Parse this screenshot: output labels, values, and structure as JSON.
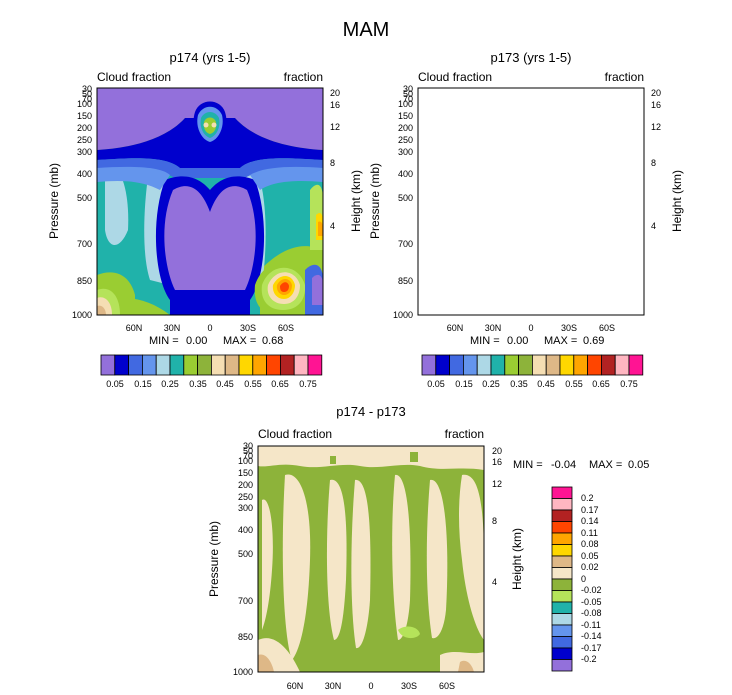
{
  "page_title": "MAM",
  "chart_data": [
    {
      "type": "heatmap",
      "title": "p174 (yrs 1-5)",
      "left_label": "Cloud fraction",
      "right_label": "fraction",
      "ylabel": "Pressure (mb)",
      "ylabel_right": "Height (km)",
      "y_ticks": [
        "30",
        "50",
        "70",
        "100",
        "150",
        "200",
        "250",
        "300",
        "400",
        "500",
        "700",
        "850",
        "1000"
      ],
      "y_right_ticks": [
        "20",
        "16",
        "12",
        "8",
        "4"
      ],
      "x_ticks": [
        "60N",
        "30N",
        "0",
        "30S",
        "60S"
      ],
      "min_label": "MIN =",
      "min_value": "0.00",
      "max_label": "MAX =",
      "max_value": "0.68",
      "colorbar_labels": [
        "0.05",
        "0.15",
        "0.25",
        "0.35",
        "0.45",
        "0.55",
        "0.65",
        "0.75"
      ]
    },
    {
      "type": "heatmap",
      "title": "p173 (yrs 1-5)",
      "left_label": "Cloud fraction",
      "right_label": "fraction",
      "ylabel": "Pressure (mb)",
      "ylabel_right": "Height (km)",
      "y_ticks": [
        "30",
        "50",
        "70",
        "100",
        "150",
        "200",
        "250",
        "300",
        "400",
        "500",
        "700",
        "850",
        "1000"
      ],
      "y_right_ticks": [
        "20",
        "16",
        "12",
        "8",
        "4"
      ],
      "x_ticks": [
        "60N",
        "30N",
        "0",
        "30S",
        "60S"
      ],
      "min_label": "MIN =",
      "min_value": "0.00",
      "max_label": "MAX =",
      "max_value": "0.69",
      "colorbar_labels": [
        "0.05",
        "0.15",
        "0.25",
        "0.35",
        "0.45",
        "0.55",
        "0.65",
        "0.75"
      ]
    },
    {
      "type": "heatmap",
      "title": "p174 - p173",
      "left_label": "Cloud fraction",
      "right_label": "fraction",
      "ylabel": "Pressure (mb)",
      "ylabel_right": "Height (km)",
      "y_ticks": [
        "30",
        "50",
        "70",
        "100",
        "150",
        "200",
        "250",
        "300",
        "400",
        "500",
        "700",
        "850",
        "1000"
      ],
      "y_right_ticks": [
        "20",
        "16",
        "12",
        "8",
        "4"
      ],
      "x_ticks": [
        "60N",
        "30N",
        "0",
        "30S",
        "60S"
      ],
      "min_label": "MIN =",
      "min_value": "-0.04",
      "max_label": "MAX =",
      "max_value": "0.05",
      "colorbar_labels": [
        "0.2",
        "0.17",
        "0.14",
        "0.11",
        "0.08",
        "0.05",
        "0.02",
        "0",
        "-0.02",
        "-0.05",
        "-0.08",
        "-0.11",
        "-0.14",
        "-0.17",
        "-0.2"
      ]
    }
  ],
  "colors": {
    "abs_scale": [
      "#9370db",
      "#0000cd",
      "#4169e1",
      "#6495ed",
      "#add8e6",
      "#20b2aa",
      "#9acd32",
      "#8db33a",
      "#f5deb3",
      "#deb887",
      "#ffd700",
      "#ffa500",
      "#ff4500",
      "#b22222",
      "#ffb6c1",
      "#ff1493"
    ],
    "diff_scale": [
      "#ff1493",
      "#ffb6c1",
      "#b22222",
      "#ff4500",
      "#ffa500",
      "#ffd700",
      "#deb887",
      "#f5e6c8",
      "#8db33a",
      "#b5e35a",
      "#20b2aa",
      "#add8e6",
      "#6495ed",
      "#4169e1",
      "#0000cd",
      "#9370db"
    ]
  }
}
